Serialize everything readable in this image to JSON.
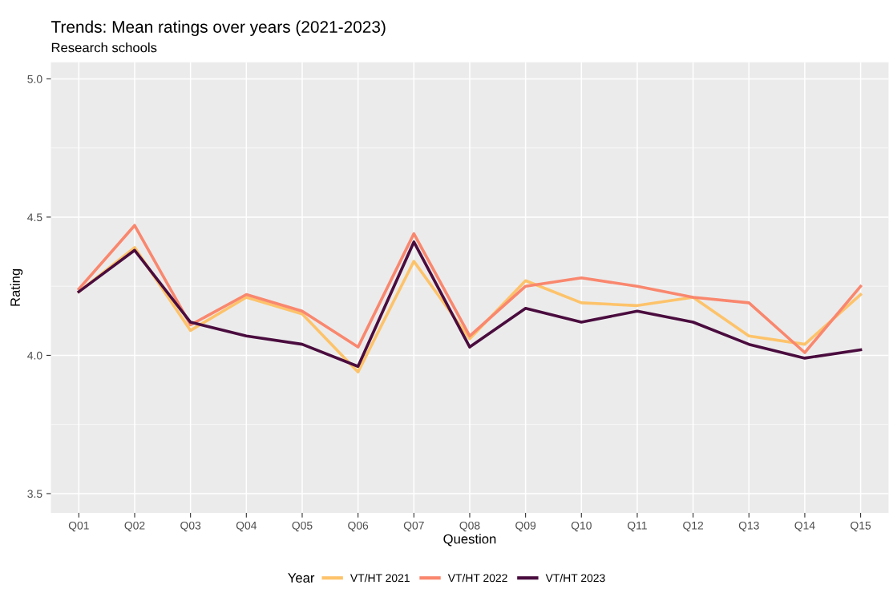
{
  "chart_data": {
    "type": "line",
    "title": "Trends: Mean ratings over years (2021-2023)",
    "subtitle": "Research schools",
    "xlabel": "Question",
    "ylabel": "Rating",
    "legend_title": "Year",
    "categories": [
      "Q01",
      "Q02",
      "Q03",
      "Q04",
      "Q05",
      "Q06",
      "Q07",
      "Q08",
      "Q09",
      "Q10",
      "Q11",
      "Q12",
      "Q13",
      "Q14",
      "Q15"
    ],
    "series": [
      {
        "name": "VT/HT 2021",
        "color": "#fdc36b",
        "values": [
          4.23,
          4.39,
          4.09,
          4.21,
          4.15,
          3.94,
          4.34,
          4.06,
          4.27,
          4.19,
          4.18,
          4.21,
          4.07,
          4.04,
          4.22
        ]
      },
      {
        "name": "VT/HT 2022",
        "color": "#f9876e",
        "values": [
          4.24,
          4.47,
          4.11,
          4.22,
          4.16,
          4.03,
          4.44,
          4.07,
          4.25,
          4.28,
          4.25,
          4.21,
          4.19,
          4.01,
          4.25
        ]
      },
      {
        "name": "VT/HT 2023",
        "color": "#4a0c3e",
        "values": [
          4.23,
          4.38,
          4.12,
          4.07,
          4.04,
          3.96,
          4.41,
          4.03,
          4.17,
          4.12,
          4.16,
          4.12,
          4.04,
          3.99,
          4.02
        ]
      }
    ],
    "ylim": [
      3.43,
      5.06
    ],
    "yticks": [
      {
        "value": 3.5,
        "label": "3.5"
      },
      {
        "value": 4.0,
        "label": "4.0"
      },
      {
        "value": 4.5,
        "label": "4.5"
      },
      {
        "value": 5.0,
        "label": "5.0"
      }
    ],
    "grid": true,
    "legend": "bottom",
    "line_style": "solid",
    "marker": "none"
  }
}
